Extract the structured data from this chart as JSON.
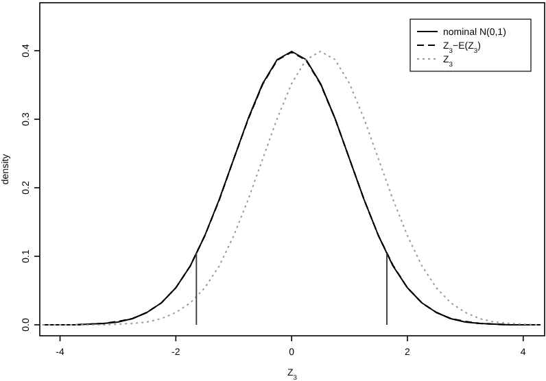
{
  "chart_data": {
    "type": "line",
    "xlabel": "Z$_{3}$",
    "ylabel": "density",
    "xlim": [
      -4.35,
      4.37
    ],
    "ylim": [
      -0.016,
      0.47
    ],
    "xticks": [
      -4,
      -2,
      0,
      2,
      4
    ],
    "yticks": [
      {
        "value": 0,
        "label": "0.0"
      },
      {
        "value": 0.1,
        "label": "0.1"
      },
      {
        "value": 0.2,
        "label": "0.2"
      },
      {
        "value": 0.3,
        "label": "0.3"
      },
      {
        "value": 0.4,
        "label": "0.4"
      }
    ],
    "x": [
      -4.3,
      -4,
      -3.75,
      -3.5,
      -3.25,
      -3,
      -2.75,
      -2.5,
      -2.25,
      -2,
      -1.75,
      -1.5,
      -1.25,
      -1,
      -0.75,
      -0.5,
      -0.25,
      0,
      0.25,
      0.5,
      0.75,
      1,
      1.25,
      1.5,
      1.75,
      2,
      2.25,
      2.5,
      2.75,
      3,
      3.25,
      3.5,
      3.75,
      4,
      4.3
    ],
    "legend": "top right",
    "grid": false,
    "ref_lines": [
      {
        "axis": "x",
        "value": -1.645,
        "color": "#444444"
      },
      {
        "axis": "x",
        "value": 1.645,
        "color": "#444444"
      }
    ],
    "series": [
      {
        "name": "nominal N(0,1)",
        "color": "#000000",
        "line_style": "solid",
        "values": [
          0,
          0,
          0,
          0.001,
          0.002,
          0.004,
          0.009,
          0.018,
          0.032,
          0.054,
          0.086,
          0.13,
          0.183,
          0.242,
          0.301,
          0.352,
          0.387,
          0.399,
          0.387,
          0.352,
          0.301,
          0.242,
          0.183,
          0.13,
          0.086,
          0.054,
          0.032,
          0.018,
          0.009,
          0.004,
          0.002,
          0.001,
          0,
          0,
          0
        ]
      },
      {
        "name": "Z$_{3}$−E(Z$_{3}$)",
        "color": "#000000",
        "line_style": "dashed",
        "values": [
          0,
          0,
          0,
          0.001,
          0.002,
          0.005,
          0.009,
          0.018,
          0.032,
          0.054,
          0.086,
          0.13,
          0.182,
          0.242,
          0.3,
          0.351,
          0.386,
          0.398,
          0.386,
          0.351,
          0.301,
          0.242,
          0.183,
          0.13,
          0.087,
          0.054,
          0.032,
          0.018,
          0.009,
          0.005,
          0.002,
          0.001,
          0,
          0,
          0
        ]
      },
      {
        "name": "Z$_{3}$",
        "color": "#999999",
        "line_style": "dotted",
        "values": [
          0,
          0,
          0,
          0,
          0,
          0.001,
          0.002,
          0.004,
          0.009,
          0.018,
          0.032,
          0.054,
          0.086,
          0.13,
          0.183,
          0.242,
          0.301,
          0.352,
          0.387,
          0.399,
          0.387,
          0.352,
          0.301,
          0.242,
          0.183,
          0.13,
          0.086,
          0.054,
          0.032,
          0.018,
          0.009,
          0.004,
          0.002,
          0.001,
          0
        ]
      }
    ]
  }
}
